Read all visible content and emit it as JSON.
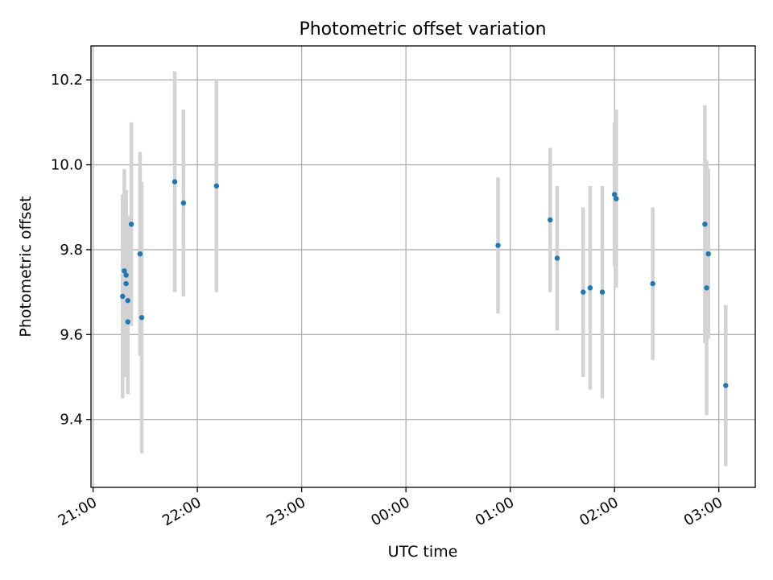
{
  "chart_data": {
    "type": "scatter",
    "title": "Photometric offset variation",
    "xlabel": "UTC time",
    "ylabel": "Photometric offset",
    "x_axis": "time (hours after 21:00 UTC, axis crosses midnight)",
    "xlim_hours": [
      20.98,
      27.35
    ],
    "ylim": [
      9.24,
      10.28
    ],
    "x_tick_labels": [
      "21:00",
      "22:00",
      "23:00",
      "00:00",
      "01:00",
      "02:00",
      "03:00"
    ],
    "x_tick_hours": [
      21,
      22,
      23,
      24,
      25,
      26,
      27
    ],
    "y_ticks": [
      9.4,
      9.6,
      9.8,
      10.0,
      10.2
    ],
    "y_tick_labels": [
      "9.4",
      "9.6",
      "9.8",
      "10.0",
      "10.2"
    ],
    "grid": true,
    "marker_color": "#1f77b4",
    "errorbar_color": "#d3d3d3",
    "points": [
      {
        "x": "21:17",
        "y": 9.69,
        "yerr": 0.24
      },
      {
        "x": "21:18",
        "y": 9.75,
        "yerr": 0.24
      },
      {
        "x": "21:19",
        "y": 9.74,
        "yerr": 0.2
      },
      {
        "x": "21:19",
        "y": 9.72,
        "yerr": 0.22
      },
      {
        "x": "21:20",
        "y": 9.68,
        "yerr": 0.2
      },
      {
        "x": "21:20",
        "y": 9.63,
        "yerr": 0.17
      },
      {
        "x": "21:22",
        "y": 9.86,
        "yerr": 0.24
      },
      {
        "x": "21:27",
        "y": 9.79,
        "yerr": 0.24
      },
      {
        "x": "21:28",
        "y": 9.64,
        "yerr": 0.32
      },
      {
        "x": "21:47",
        "y": 9.96,
        "yerr": 0.26
      },
      {
        "x": "21:52",
        "y": 9.91,
        "yerr": 0.22
      },
      {
        "x": "22:11",
        "y": 9.95,
        "yerr": 0.25
      },
      {
        "x": "00:53",
        "y": 9.81,
        "yerr": 0.16
      },
      {
        "x": "01:23",
        "y": 9.87,
        "yerr": 0.17
      },
      {
        "x": "01:27",
        "y": 9.78,
        "yerr": 0.17
      },
      {
        "x": "01:42",
        "y": 9.7,
        "yerr": 0.2
      },
      {
        "x": "01:46",
        "y": 9.71,
        "yerr": 0.24
      },
      {
        "x": "01:53",
        "y": 9.7,
        "yerr": 0.25
      },
      {
        "x": "02:00",
        "y": 9.93,
        "yerr": 0.17
      },
      {
        "x": "02:01",
        "y": 9.92,
        "yerr": 0.21
      },
      {
        "x": "02:22",
        "y": 9.72,
        "yerr": 0.18
      },
      {
        "x": "02:52",
        "y": 9.86,
        "yerr": 0.28
      },
      {
        "x": "02:53",
        "y": 9.71,
        "yerr": 0.3
      },
      {
        "x": "02:54",
        "y": 9.79,
        "yerr": 0.2
      },
      {
        "x": "03:04",
        "y": 9.48,
        "yerr": 0.19
      }
    ]
  }
}
